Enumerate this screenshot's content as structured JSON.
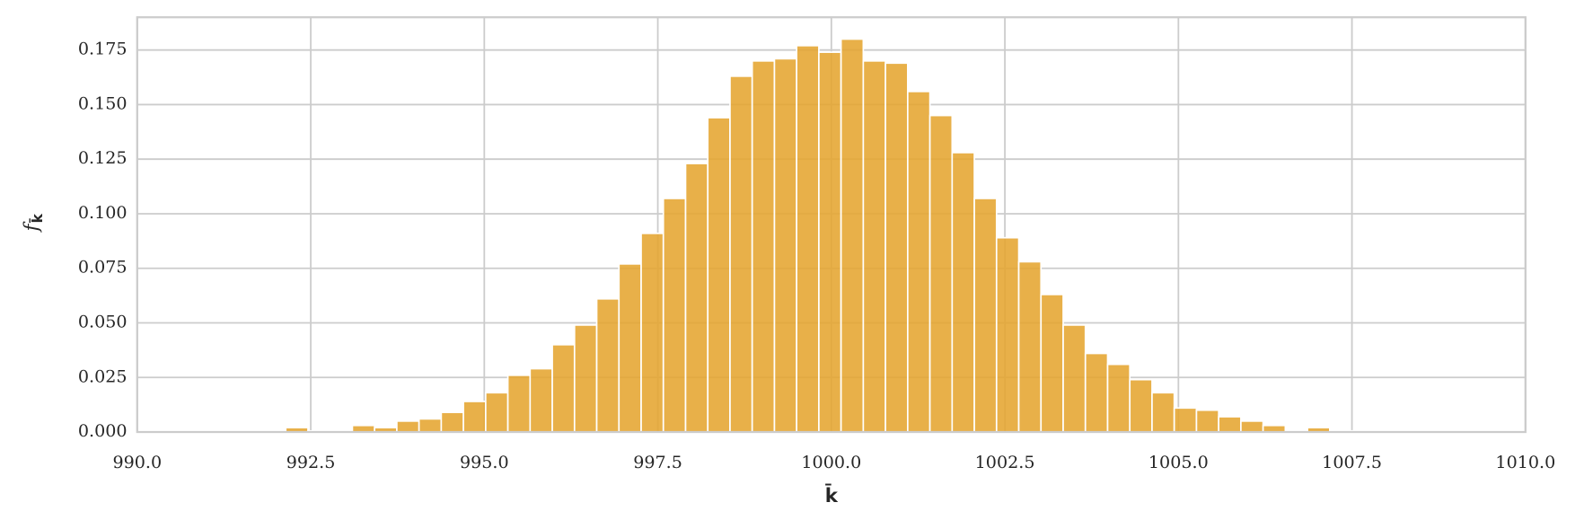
{
  "chart_data": {
    "type": "histogram",
    "xlabel": "k̄",
    "ylabel": "f",
    "ylabel_sub": "k̄",
    "color": "#e5a530",
    "grid": true,
    "bins": [
      990.22,
      990.54,
      990.86,
      991.18,
      991.5,
      991.82,
      992.14,
      992.46,
      992.78,
      993.1,
      993.42,
      993.74,
      994.06,
      994.38,
      994.7,
      995.02,
      995.34,
      995.66,
      995.98,
      996.3,
      996.62,
      996.94,
      997.26,
      997.58,
      997.9,
      998.22,
      998.54,
      998.86,
      999.18,
      999.5,
      999.82,
      1000.14,
      1000.46,
      1000.78,
      1001.1,
      1001.42,
      1001.74,
      1002.06,
      1002.38,
      1002.7,
      1003.02,
      1003.34,
      1003.66,
      1003.98,
      1004.3,
      1004.62,
      1004.94,
      1005.26,
      1005.58,
      1005.9,
      1006.22,
      1006.54,
      1006.86,
      1007.18,
      1007.5,
      1007.82,
      1008.14,
      1008.46,
      1008.78,
      1009.1,
      1009.42,
      1009.74
    ],
    "values": [
      0.0005,
      0.0005,
      0.0005,
      0.0005,
      0.0005,
      0.0005,
      0.002,
      0.0005,
      0.0005,
      0.003,
      0.002,
      0.005,
      0.006,
      0.009,
      0.014,
      0.018,
      0.026,
      0.029,
      0.04,
      0.049,
      0.061,
      0.077,
      0.091,
      0.107,
      0.123,
      0.144,
      0.163,
      0.17,
      0.171,
      0.177,
      0.174,
      0.18,
      0.17,
      0.169,
      0.156,
      0.145,
      0.128,
      0.107,
      0.089,
      0.078,
      0.063,
      0.049,
      0.036,
      0.031,
      0.024,
      0.018,
      0.011,
      0.01,
      0.007,
      0.005,
      0.003,
      0,
      0.002,
      0.0005,
      0.0005,
      0.0005,
      0.0005,
      0.0005,
      0.0005,
      0.0005,
      0.0005
    ],
    "xlim": [
      990,
      1010
    ],
    "xticks": [
      {
        "value": 990,
        "label": "990.0"
      },
      {
        "value": 992.5,
        "label": "992.5"
      },
      {
        "value": 995,
        "label": "995.0"
      },
      {
        "value": 997.5,
        "label": "997.5"
      },
      {
        "value": 1000,
        "label": "1000.0"
      },
      {
        "value": 1002.5,
        "label": "1002.5"
      },
      {
        "value": 1005,
        "label": "1005.0"
      },
      {
        "value": 1007.5,
        "label": "1007.5"
      },
      {
        "value": 1010,
        "label": "1010.0"
      }
    ],
    "ylim": [
      0,
      0.19
    ],
    "yticks": [
      {
        "value": 0,
        "label": "0.000"
      },
      {
        "value": 0.025,
        "label": "0.025"
      },
      {
        "value": 0.05,
        "label": "0.050"
      },
      {
        "value": 0.075,
        "label": "0.075"
      },
      {
        "value": 0.1,
        "label": "0.100"
      },
      {
        "value": 0.125,
        "label": "0.125"
      },
      {
        "value": 0.15,
        "label": "0.150"
      },
      {
        "value": 0.175,
        "label": "0.175"
      }
    ]
  }
}
